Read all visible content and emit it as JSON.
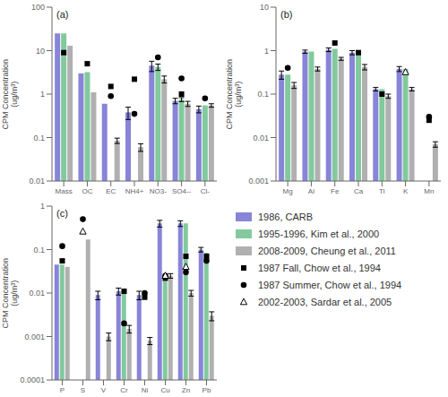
{
  "chart_data": [
    {
      "type": "bar",
      "annotation": "(a)",
      "y_label": "CPM Concentration\n(ug/m³)",
      "log": "y",
      "categories": [
        "Mass",
        "OC",
        "EC",
        "NH4+",
        "NO3-",
        "SO4--",
        "Cl-"
      ],
      "ylim": [
        0.01,
        100
      ],
      "yticks": [
        0.01,
        0.1,
        1,
        10,
        100
      ],
      "series": [
        {
          "name": "1986, CARB",
          "type": "bar",
          "color": "#8884d8",
          "values": [
            25.0,
            3.0,
            0.6,
            0.38,
            4.5,
            0.7,
            0.45
          ],
          "errors": [
            null,
            null,
            null,
            0.12,
            1.2,
            0.1,
            0.08
          ]
        },
        {
          "name": "1995-1996, Kim et al., 2000",
          "type": "bar",
          "color": "#82ca9d",
          "values": [
            25.0,
            3.2,
            null,
            null,
            4.2,
            0.75,
            0.55
          ],
          "errors": [
            null,
            null,
            null,
            null,
            0.7,
            0.08,
            null
          ]
        },
        {
          "name": "2008-2009, Cheung et al., 2011",
          "type": "bar",
          "color": "#b0b0b0",
          "values": [
            13.0,
            1.1,
            0.085,
            0.06,
            2.2,
            0.6,
            0.55
          ],
          "errors": [
            null,
            null,
            0.012,
            0.012,
            0.4,
            0.08,
            0.05
          ]
        },
        {
          "name": "1987 Fall, Chow et al., 1994",
          "type": "scatter",
          "marker": "square",
          "color": "#000000",
          "values": [
            9.0,
            5.0,
            1.5,
            2.2,
            null,
            1.0,
            null
          ]
        },
        {
          "name": "1987 Summer, Chow et al., 1994",
          "type": "scatter",
          "marker": "circle",
          "color": "#000000",
          "values": [
            null,
            null,
            0.9,
            0.35,
            7.0,
            2.3,
            0.8
          ]
        },
        {
          "name": "2002-2003, Sardar et al., 2005",
          "type": "scatter",
          "marker": "open_triangle",
          "color": "#000000",
          "values": [
            null,
            null,
            null,
            null,
            null,
            null,
            null
          ]
        }
      ]
    },
    {
      "type": "bar",
      "annotation": "(b)",
      "y_label": "CPM Concentration\n(ug/m³)",
      "log": "y",
      "categories": [
        "Mg",
        "Al",
        "Fe",
        "Ca",
        "Ti",
        "K",
        "Mn"
      ],
      "ylim": [
        0.001,
        10
      ],
      "yticks": [
        0.001,
        0.01,
        0.1,
        1,
        10
      ],
      "series": [
        {
          "name": "1986, CARB",
          "type": "bar",
          "color": "#8884d8",
          "values": [
            0.28,
            0.95,
            1.05,
            0.9,
            0.13,
            0.38,
            null
          ],
          "errors": [
            0.06,
            0.08,
            0.1,
            0.1,
            0.012,
            0.05,
            null
          ]
        },
        {
          "name": "1995-1996, Kim et al., 2000",
          "type": "bar",
          "color": "#82ca9d",
          "values": [
            0.28,
            0.95,
            1.1,
            0.9,
            0.13,
            0.38,
            null
          ],
          "errors": [
            null,
            null,
            null,
            null,
            null,
            null,
            null
          ]
        },
        {
          "name": "2008-2009, Cheung et al., 2011",
          "type": "bar",
          "color": "#b0b0b0",
          "values": [
            0.16,
            0.38,
            0.65,
            0.42,
            0.09,
            0.13,
            0.007
          ],
          "errors": [
            0.025,
            0.04,
            0.05,
            0.06,
            0.01,
            0.012,
            0.001
          ]
        },
        {
          "name": "1987 Fall, Chow et al., 1994",
          "type": "scatter",
          "marker": "square",
          "color": "#000000",
          "values": [
            null,
            null,
            1.5,
            0.9,
            0.1,
            null,
            0.025
          ]
        },
        {
          "name": "1987 Summer, Chow et al., 1994",
          "type": "scatter",
          "marker": "circle",
          "color": "#000000",
          "values": [
            0.4,
            null,
            null,
            null,
            null,
            null,
            0.03
          ]
        },
        {
          "name": "2002-2003, Sardar et al., 2005",
          "type": "scatter",
          "marker": "open_triangle",
          "color": "#000000",
          "values": [
            null,
            null,
            null,
            null,
            null,
            0.32,
            null
          ]
        }
      ]
    },
    {
      "type": "bar",
      "annotation": "(c)",
      "y_label": "CPM Concentration\n(ug/m³)",
      "log": "y",
      "categories": [
        "P",
        "S",
        "V",
        "Cr",
        "Ni",
        "Cu",
        "Zn",
        "Pb"
      ],
      "ylim": [
        0.0001,
        1
      ],
      "yticks": [
        0.0001,
        0.001,
        0.01,
        0.1,
        1
      ],
      "series": [
        {
          "name": "1986, CARB",
          "type": "bar",
          "color": "#8884d8",
          "values": [
            0.045,
            null,
            0.009,
            0.011,
            0.009,
            0.4,
            0.4,
            0.1
          ],
          "errors": [
            null,
            null,
            0.002,
            0.002,
            0.002,
            0.07,
            0.06,
            0.012
          ]
        },
        {
          "name": "1995-1996, Kim et al., 2000",
          "type": "bar",
          "color": "#82ca9d",
          "values": [
            0.045,
            null,
            null,
            0.011,
            null,
            0.025,
            0.4,
            0.085
          ],
          "errors": [
            null,
            null,
            null,
            null,
            null,
            null,
            null,
            null
          ]
        },
        {
          "name": "2008-2009, Cheung et al., 2011",
          "type": "bar",
          "color": "#b0b0b0",
          "values": [
            0.04,
            0.17,
            0.001,
            0.0015,
            0.0008,
            0.025,
            0.01,
            0.003
          ],
          "errors": [
            null,
            null,
            0.0002,
            0.0003,
            0.00015,
            0.003,
            0.0015,
            0.0007
          ]
        },
        {
          "name": "1987 Fall, Chow et al., 1994",
          "type": "scatter",
          "marker": "square",
          "color": "#000000",
          "values": [
            0.055,
            null,
            null,
            0.011,
            0.008,
            0.022,
            0.07,
            0.07
          ]
        },
        {
          "name": "1987 Summer, Chow et al., 1994",
          "type": "scatter",
          "marker": "circle",
          "color": "#000000",
          "values": [
            0.12,
            0.5,
            null,
            0.002,
            0.01,
            0.025,
            0.03,
            0.055
          ]
        },
        {
          "name": "2002-2003, Sardar et al., 2005",
          "type": "scatter",
          "marker": "open_triangle",
          "color": "#000000",
          "values": [
            null,
            0.26,
            null,
            null,
            null,
            0.025,
            0.04,
            null
          ]
        }
      ]
    }
  ]
}
